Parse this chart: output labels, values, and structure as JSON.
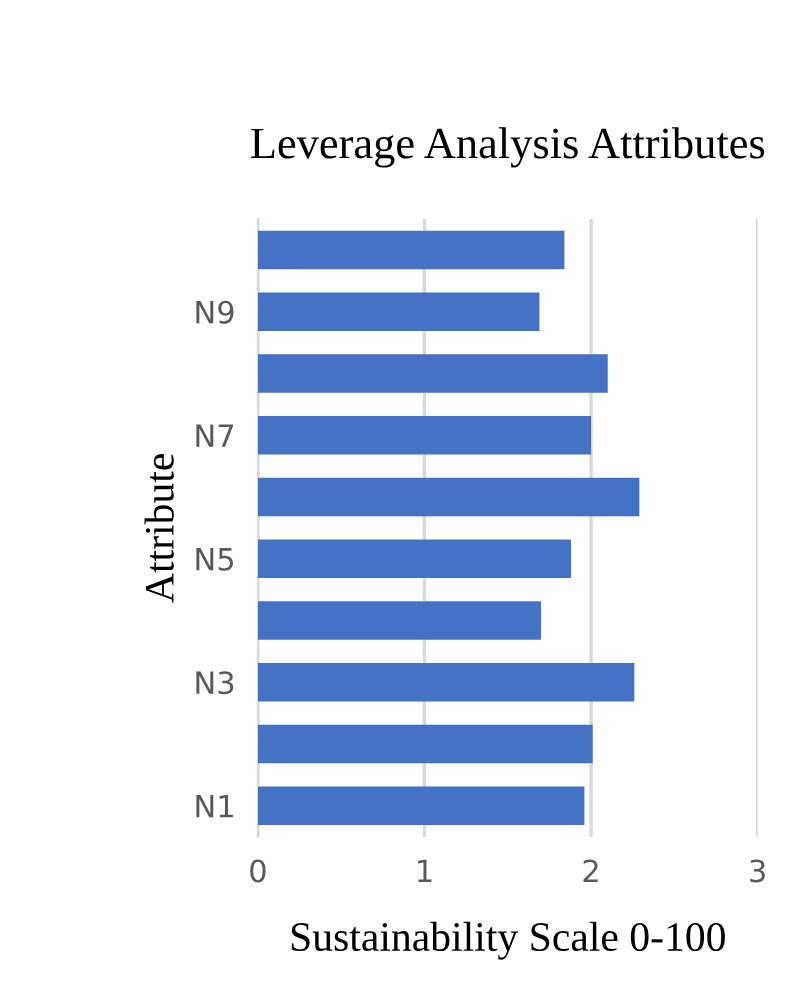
{
  "chart_data": {
    "type": "bar",
    "orientation": "horizontal",
    "title": "Leverage Analysis Attributes",
    "xlabel": "Sustainability Scale 0-100",
    "ylabel": "Attribute",
    "categories": [
      null,
      "N9",
      null,
      "N7",
      null,
      "N5",
      null,
      "N3",
      null,
      "N1"
    ],
    "values": [
      1.84,
      1.69,
      2.1,
      2.0,
      2.29,
      1.88,
      1.7,
      2.26,
      2.01,
      1.96
    ],
    "color": "#4472c4",
    "xlim": [
      0,
      3
    ],
    "xticks": [
      0,
      1,
      2,
      3
    ],
    "grid": "x"
  }
}
